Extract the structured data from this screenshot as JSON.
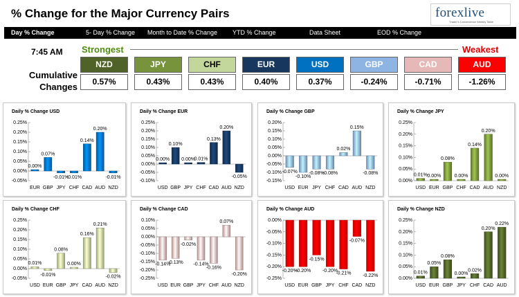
{
  "header": {
    "title": "% Change for the Major Currency Pairs",
    "logo_text": "forexlive",
    "logo_tagline": "Trader's Convenience Weekly Table"
  },
  "tabs": [
    {
      "label": "Day % Change"
    },
    {
      "label": "5- Day % Change"
    },
    {
      "label": "Month to Date % Change"
    },
    {
      "label": "YTD % Change"
    },
    {
      "label": "Data Sheet"
    },
    {
      "label": "EOD % Change"
    }
  ],
  "summary": {
    "time": "7:45 AM",
    "strongest_label": "Strongest",
    "weakest_label": "Weakest",
    "cumulative_label": "Cumulative Changes",
    "currencies": [
      {
        "code": "NZD",
        "value": "0.57%",
        "color": "#4f6228"
      },
      {
        "code": "JPY",
        "value": "0.43%",
        "color": "#77933c"
      },
      {
        "code": "CHF",
        "value": "0.43%",
        "color": "#c3d69b"
      },
      {
        "code": "EUR",
        "value": "0.40%",
        "color": "#17375e"
      },
      {
        "code": "USD",
        "value": "0.37%",
        "color": "#0070c0"
      },
      {
        "code": "GBP",
        "value": "-0.24%",
        "color": "#8eb4e3"
      },
      {
        "code": "CAD",
        "value": "-0.71%",
        "color": "#e6b9b8"
      },
      {
        "code": "AUD",
        "value": "-1.26%",
        "color": "#ff0000"
      }
    ]
  },
  "chart_data": [
    {
      "type": "bar",
      "title": "Daily % Change USD",
      "color": "#0070c0",
      "categories": [
        "EUR",
        "GBP",
        "JPY",
        "CHF",
        "CAD",
        "AUD",
        "NZD"
      ],
      "values": [
        0.0,
        0.07,
        -0.01,
        -0.01,
        0.14,
        0.2,
        -0.01
      ],
      "labels": [
        "0.00%",
        "0.07%",
        "-0.01%",
        "-0.01%",
        "0.14%",
        "0.20%",
        "-0.01%"
      ],
      "yticks": [
        "-0.05%",
        "0.00%",
        "0.05%",
        "0.10%",
        "0.15%",
        "0.20%",
        "0.25%"
      ],
      "ylim": [
        -0.05,
        0.25
      ]
    },
    {
      "type": "bar",
      "title": "Daily % Change EUR",
      "color": "#17375e",
      "categories": [
        "USD",
        "GBP",
        "JPY",
        "CHF",
        "CAD",
        "AUD",
        "NZD"
      ],
      "values": [
        0.0,
        0.1,
        0.0,
        0.01,
        0.13,
        0.2,
        -0.05
      ],
      "labels": [
        "0.00%",
        "0.10%",
        "0.00%",
        "0.01%",
        "0.13%",
        "0.20%",
        "-0.05%"
      ],
      "yticks": [
        "-0.10%",
        "-0.05%",
        "0.00%",
        "0.05%",
        "0.10%",
        "0.15%",
        "0.20%",
        "0.25%"
      ],
      "ylim": [
        -0.1,
        0.25
      ]
    },
    {
      "type": "bar",
      "title": "Daily % Change GBP",
      "color": "#8eb4e3",
      "categories": [
        "USD",
        "EUR",
        "JPY",
        "CHF",
        "CAD",
        "AUD",
        "NZD"
      ],
      "values": [
        -0.07,
        -0.1,
        -0.08,
        -0.08,
        0.02,
        0.15,
        -0.08
      ],
      "labels": [
        "-0.07%",
        "-0.10%",
        "-0.08%",
        "-0.08%",
        "0.02%",
        "0.15%",
        "-0.08%"
      ],
      "yticks": [
        "-0.15%",
        "-0.10%",
        "-0.05%",
        "0.00%",
        "0.05%",
        "0.10%",
        "0.15%",
        "0.20%"
      ],
      "ylim": [
        -0.15,
        0.2
      ]
    },
    {
      "type": "bar",
      "title": "Daily % Change JPY",
      "color": "#77933c",
      "categories": [
        "USD",
        "EUR",
        "GBP",
        "CHF",
        "CAD",
        "AUD",
        "NZD"
      ],
      "values": [
        0.01,
        0.0,
        0.08,
        0.0,
        0.14,
        0.2,
        0.0
      ],
      "labels": [
        "0.01%",
        "0.00%",
        "0.08%",
        "0.00%",
        "0.14%",
        "0.20%",
        "0.00%"
      ],
      "yticks": [
        "0.00%",
        "0.05%",
        "0.10%",
        "0.15%",
        "0.20%",
        "0.25%"
      ],
      "ylim": [
        0.0,
        0.25
      ]
    },
    {
      "type": "bar",
      "title": "Daily % Change CHF",
      "color": "#c3d69b",
      "categories": [
        "USD",
        "EUR",
        "GBP",
        "JPY",
        "CAD",
        "AUD",
        "NZD"
      ],
      "values": [
        0.01,
        -0.01,
        0.08,
        0.0,
        0.16,
        0.21,
        -0.02
      ],
      "labels": [
        "0.01%",
        "-0.01%",
        "0.08%",
        "0.00%",
        "0.16%",
        "0.21%",
        "-0.02%"
      ],
      "yticks": [
        "-0.05%",
        "0.00%",
        "0.05%",
        "0.10%",
        "0.15%",
        "0.20%",
        "0.25%"
      ],
      "ylim": [
        -0.05,
        0.25
      ]
    },
    {
      "type": "bar",
      "title": "Daily % Change CAD",
      "color": "#e6b9b8",
      "categories": [
        "USD",
        "EUR",
        "GBP",
        "JPY",
        "CHF",
        "AUD",
        "NZD"
      ],
      "values": [
        -0.14,
        -0.13,
        -0.02,
        -0.14,
        -0.16,
        0.07,
        -0.2
      ],
      "labels": [
        "-0.14%",
        "-0.13%",
        "-0.02%",
        "-0.14%",
        "-0.16%",
        "0.07%",
        "-0.20%"
      ],
      "yticks": [
        "-0.25%",
        "-0.20%",
        "-0.15%",
        "-0.10%",
        "-0.05%",
        "0.00%",
        "0.05%",
        "0.10%"
      ],
      "ylim": [
        -0.25,
        0.1
      ]
    },
    {
      "type": "bar",
      "title": "Daily % Change AUD",
      "color": "#ff0000",
      "categories": [
        "USD",
        "EUR",
        "GBP",
        "JPY",
        "CHF",
        "CAD",
        "NZD"
      ],
      "values": [
        -0.2,
        -0.2,
        -0.15,
        -0.2,
        -0.21,
        -0.07,
        -0.22
      ],
      "labels": [
        "-0.20%",
        "-0.20%",
        "-0.15%",
        "-0.20%",
        "-0.21%",
        "-0.07%",
        "-0.22%"
      ],
      "yticks": [
        "-0.25%",
        "-0.20%",
        "-0.15%",
        "-0.10%",
        "-0.05%",
        "0.00%"
      ],
      "ylim": [
        -0.25,
        0.0
      ]
    },
    {
      "type": "bar",
      "title": "Daily % Change NZD",
      "color": "#4f6228",
      "categories": [
        "USD",
        "EUR",
        "GBP",
        "JPY",
        "CHF",
        "CAD",
        "AUD"
      ],
      "values": [
        0.01,
        0.05,
        0.08,
        0.0,
        0.02,
        0.2,
        0.22
      ],
      "labels": [
        "0.01%",
        "0.05%",
        "0.08%",
        "0.00%",
        "0.02%",
        "0.20%",
        "0.22%"
      ],
      "yticks": [
        "0.00%",
        "0.05%",
        "0.10%",
        "0.15%",
        "0.20%",
        "0.25%"
      ],
      "ylim": [
        0.0,
        0.25
      ]
    }
  ]
}
